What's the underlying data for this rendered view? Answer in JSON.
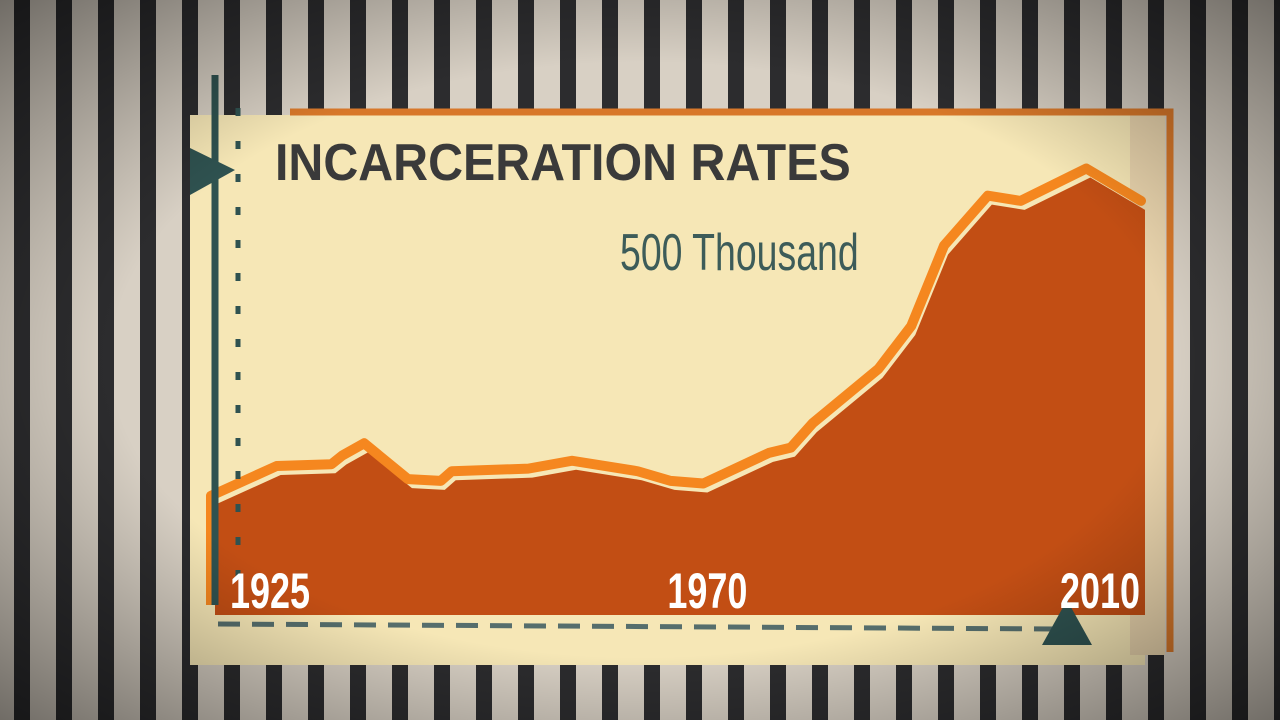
{
  "chart_data": {
    "type": "area",
    "title": "INCARCERATION RATES",
    "annotation": "500 Thousand",
    "x": [
      1925,
      1931,
      1936,
      1937,
      1939,
      1943,
      1946,
      1947,
      1954,
      1958,
      1964,
      1967,
      1970,
      1976,
      1978,
      1980,
      1986,
      1989,
      1992,
      1996,
      1999,
      2005,
      2010
    ],
    "values": [
      126,
      160,
      162,
      172,
      186,
      145,
      143,
      154,
      157,
      166,
      154,
      143,
      140,
      175,
      181,
      209,
      271,
      320,
      412,
      469,
      463,
      500,
      463
    ],
    "color": "#c24e14",
    "line_color": "#f5871f",
    "xlim": [
      1925,
      2010
    ],
    "xticks": [
      1925,
      1970,
      2010
    ],
    "ylim": [
      0,
      560
    ]
  }
}
